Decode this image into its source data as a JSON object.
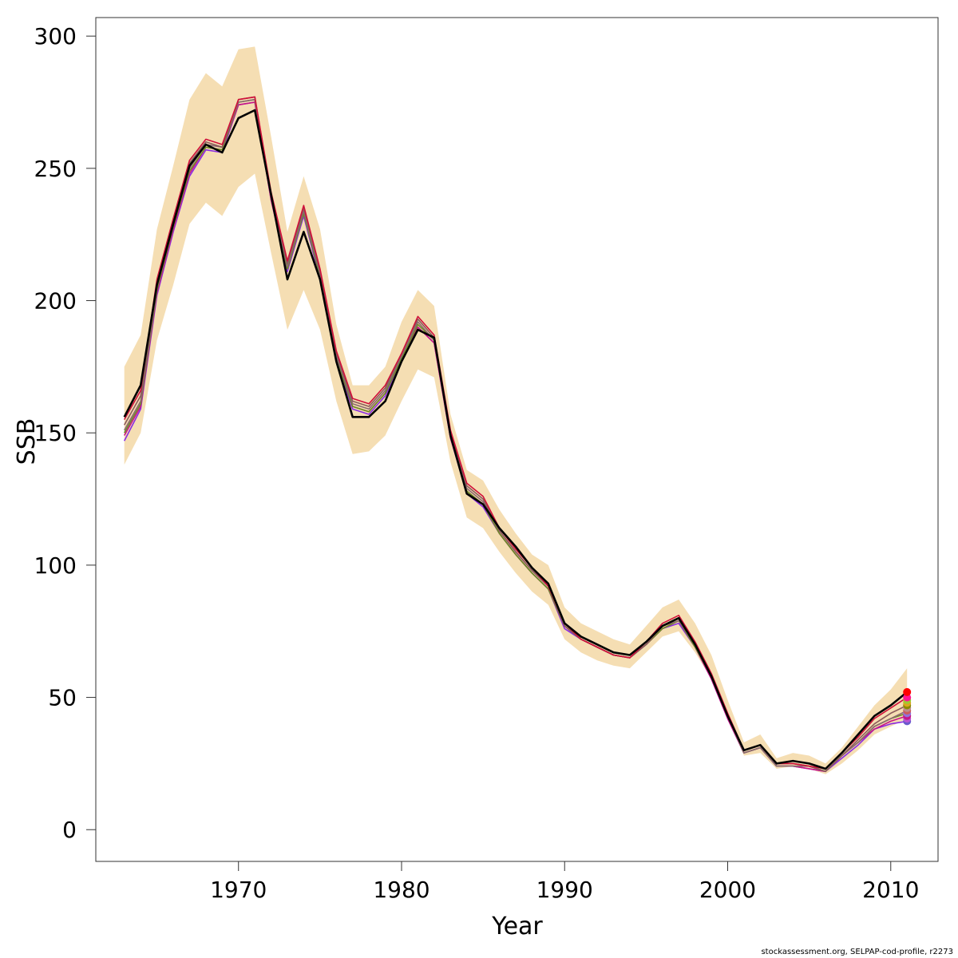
{
  "chart_data": {
    "type": "line",
    "xlabel": "Year",
    "ylabel": "SSB",
    "xlim": [
      1961.25,
      2012.9
    ],
    "ylim": [
      -12,
      307
    ],
    "x_ticks": [
      1970,
      1980,
      1990,
      2000,
      2010
    ],
    "y_ticks": [
      0,
      50,
      100,
      150,
      200,
      250,
      300
    ],
    "grid": false,
    "legend": "none",
    "x": [
      1963,
      1964,
      1965,
      1966,
      1967,
      1968,
      1969,
      1970,
      1971,
      1972,
      1973,
      1974,
      1975,
      1976,
      1977,
      1978,
      1979,
      1980,
      1981,
      1982,
      1983,
      1984,
      1985,
      1986,
      1987,
      1988,
      1989,
      1990,
      1991,
      1992,
      1993,
      1994,
      1995,
      1996,
      1997,
      1998,
      1999,
      2000,
      2001,
      2002,
      2003,
      2004,
      2005,
      2006,
      2007,
      2008,
      2009,
      2010,
      2011
    ],
    "confidence_band": {
      "color": "#f5deb3",
      "lower": [
        138,
        150,
        185,
        206,
        229,
        237,
        232,
        243,
        248,
        218,
        189,
        204,
        189,
        162,
        142,
        143,
        149,
        162,
        174,
        171,
        139,
        118,
        114,
        105,
        97,
        90,
        85,
        72,
        67,
        64,
        62,
        61,
        67,
        73,
        75,
        67,
        57,
        42,
        28,
        29,
        23,
        24,
        23,
        21,
        25,
        30,
        36,
        39,
        42
      ],
      "upper": [
        175,
        187,
        227,
        251,
        276,
        286,
        281,
        295,
        296,
        262,
        226,
        247,
        227,
        191,
        168,
        168,
        175,
        192,
        204,
        198,
        157,
        136,
        132,
        121,
        112,
        104,
        100,
        84,
        78,
        75,
        72,
        70,
        77,
        84,
        87,
        78,
        66,
        49,
        33,
        36,
        27,
        29,
        28,
        25,
        31,
        39,
        47,
        53,
        61
      ]
    },
    "series": [
      {
        "color": "#000000",
        "values": [
          156,
          168,
          206,
          229,
          251,
          259,
          256,
          269,
          272,
          240,
          208,
          226,
          208,
          177,
          156,
          156,
          162,
          177,
          189,
          186,
          149,
          127,
          123,
          114,
          107,
          99,
          93,
          78,
          73,
          70,
          67,
          66,
          71,
          77,
          80,
          70,
          58,
          43,
          30,
          32,
          25,
          26,
          25,
          23,
          29,
          36,
          43,
          47,
          52
        ]
      },
      {
        "color": "#d0103a",
        "values": [
          155,
          166,
          208,
          231,
          253,
          261,
          259,
          276,
          277,
          241,
          215,
          236,
          212,
          181,
          163,
          161,
          168,
          180,
          194,
          187,
          151,
          131,
          126,
          114,
          106,
          99,
          92,
          78,
          72,
          69,
          66,
          65,
          71,
          78,
          81,
          71,
          59,
          44,
          30,
          32,
          25,
          25,
          24,
          23,
          29,
          35,
          42,
          46,
          50
        ]
      },
      {
        "color": "#8b5a5a",
        "values": [
          153,
          164,
          206,
          230,
          252,
          260,
          258,
          276,
          277,
          240,
          214,
          235,
          211,
          180,
          162,
          160,
          167,
          180,
          193,
          186,
          150,
          130,
          125,
          113,
          105,
          98,
          92,
          77,
          72,
          69,
          66,
          65,
          70,
          77,
          80,
          70,
          58,
          43,
          30,
          32,
          25,
          25,
          24,
          22,
          28,
          34,
          40,
          44,
          47
        ]
      },
      {
        "color": "#8b6970",
        "values": [
          151,
          162,
          205,
          229,
          250,
          259,
          258,
          275,
          276,
          239,
          213,
          234,
          210,
          179,
          161,
          159,
          166,
          179,
          192,
          185,
          149,
          129,
          124,
          113,
          105,
          98,
          92,
          77,
          72,
          69,
          66,
          65,
          70,
          77,
          79,
          70,
          58,
          43,
          29,
          31,
          24,
          24,
          24,
          22,
          28,
          33,
          39,
          42,
          45
        ]
      },
      {
        "color": "#6b8e23",
        "values": [
          150,
          161,
          204,
          228,
          249,
          258,
          257,
          275,
          276,
          239,
          212,
          233,
          209,
          178,
          160,
          158,
          165,
          178,
          191,
          185,
          149,
          128,
          123,
          112,
          104,
          97,
          91,
          77,
          72,
          69,
          66,
          65,
          70,
          76,
          79,
          69,
          58,
          43,
          29,
          31,
          24,
          24,
          24,
          22,
          28,
          33,
          39,
          42,
          44
        ]
      },
      {
        "color": "#c71585",
        "values": [
          149,
          160,
          203,
          227,
          248,
          258,
          257,
          274,
          275,
          238,
          212,
          233,
          209,
          178,
          160,
          158,
          165,
          178,
          190,
          184,
          148,
          128,
          123,
          112,
          104,
          97,
          91,
          77,
          72,
          69,
          66,
          65,
          70,
          76,
          79,
          69,
          57,
          42,
          29,
          31,
          24,
          24,
          23,
          22,
          28,
          33,
          38,
          41,
          43
        ]
      },
      {
        "color": "#8a2be2",
        "values": [
          147,
          159,
          202,
          226,
          247,
          257,
          256,
          274,
          275,
          238,
          211,
          232,
          208,
          177,
          159,
          157,
          164,
          177,
          190,
          184,
          148,
          127,
          122,
          112,
          104,
          97,
          91,
          76,
          72,
          69,
          66,
          65,
          70,
          76,
          78,
          69,
          57,
          42,
          29,
          31,
          24,
          24,
          23,
          22,
          27,
          32,
          38,
          40,
          41
        ]
      }
    ],
    "end_points": {
      "x": 2011,
      "values": [
        52,
        50,
        49,
        48,
        47,
        46,
        45,
        44,
        43,
        42,
        41
      ],
      "colors": [
        "#ff0000",
        "#ff1493",
        "#9acd32",
        "#daa520",
        "#8b8b00",
        "#bc8f8f",
        "#cd5c5c",
        "#9370db",
        "#c71585",
        "#ba55d3",
        "#6a5acd"
      ]
    }
  },
  "footer": {
    "credit": "stockassessment.org, SELPAP-cod-profile, r2273"
  }
}
